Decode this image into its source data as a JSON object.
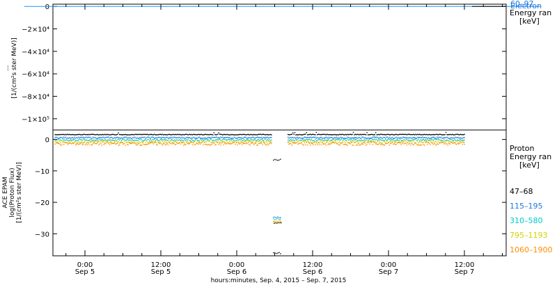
{
  "chart_data": [
    {
      "type": "line",
      "ylabel_lines": [
        "...",
        "[1/(cm²s ster MeV)]"
      ],
      "ylim": [
        -110000,
        2000
      ],
      "yticks": [
        0,
        -20000,
        -40000,
        -60000,
        -80000,
        -100000
      ],
      "ytick_labels": [
        "0",
        "−2×10⁴",
        "−4×10⁴",
        "−6×10⁴",
        "−8×10⁴",
        "−1×10⁵"
      ],
      "series": [
        {
          "name": "60–97",
          "color": "#1e90ff",
          "values": [
            [
              -0.4,
              0
            ],
            [
              6.0,
              0
            ]
          ]
        },
        {
          "name": "Electron",
          "color": "#1e90ff"
        }
      ],
      "legend": {
        "placement": "right",
        "overlap_texts": [
          "60–97",
          "Electron"
        ],
        "lines": [
          "Energy ran",
          "[keV]"
        ]
      }
    },
    {
      "type": "scatter",
      "ylabel_lines": [
        "ACE EPAM",
        "log(Proton Flux)",
        "[1/(cm²s ster MeV)]"
      ],
      "ylim": [
        -37,
        3
      ],
      "yticks": [
        0,
        -10,
        -20,
        -30
      ],
      "ytick_labels": [
        "0",
        "−10",
        "−20",
        "−30"
      ],
      "x_tick_labels": [
        [
          "0:00",
          "Sep 5"
        ],
        [
          "12:00",
          "Sep 5"
        ],
        [
          "0:00",
          "Sep 6"
        ],
        [
          "12:00",
          "Sep 6"
        ],
        [
          "0:00",
          "Sep 7"
        ],
        [
          "12:00",
          "Sep 7"
        ]
      ],
      "xlabel": "hours:minutes, Sep.  4, 2015 – Sep.  7, 2015",
      "series": [
        {
          "name": "47–68",
          "color": "#000000",
          "baseline": 1.7,
          "gap_values": [
            -6.3,
            -26.5,
            -36
          ]
        },
        {
          "name": "115–195",
          "color": "#1e78dc",
          "baseline": 0.7,
          "gap_values": [
            -24.6
          ]
        },
        {
          "name": "310–580",
          "color": "#00c8c8",
          "baseline": 0.0,
          "gap_values": [
            -25.2
          ]
        },
        {
          "name": "795–1193",
          "color": "#d2d200",
          "baseline": -0.6,
          "gap_values": [
            -25.8
          ]
        },
        {
          "name": "1060–1900",
          "color": "#ff8c00",
          "baseline": -1.2,
          "gap_values": [
            -26.1
          ]
        }
      ],
      "legend": {
        "placement": "right",
        "title_lines": [
          "Proton",
          "Energy ran",
          "[keV]"
        ]
      }
    }
  ]
}
